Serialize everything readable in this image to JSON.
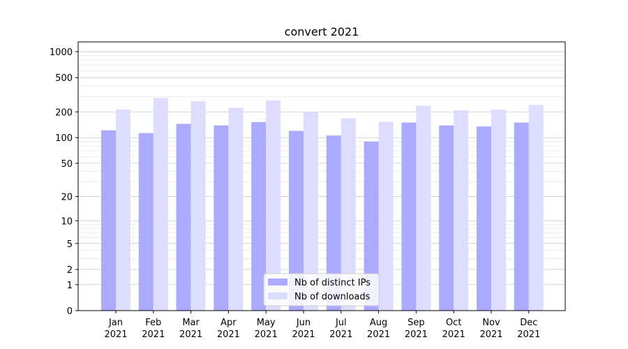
{
  "chart_data": {
    "type": "bar",
    "title": "convert 2021",
    "xlabel": "",
    "ylabel": "",
    "yscale": "symlog",
    "ylim": [
      0,
      1300
    ],
    "yticks": [
      0,
      1,
      2,
      5,
      10,
      20,
      50,
      100,
      200,
      500,
      1000
    ],
    "ytick_labels": [
      "0",
      "1",
      "2",
      "5",
      "10",
      "20",
      "50",
      "100",
      "200",
      "500",
      "1000"
    ],
    "categories": [
      "Jan\n2021",
      "Feb\n2021",
      "Mar\n2021",
      "Apr\n2021",
      "May\n2021",
      "Jun\n2021",
      "Jul\n2021",
      "Aug\n2021",
      "Sep\n2021",
      "Oct\n2021",
      "Nov\n2021",
      "Dec\n2021"
    ],
    "series": [
      {
        "name": "Nb of distinct IPs",
        "color": "#aaaaff",
        "values": [
          122,
          113,
          145,
          139,
          152,
          120,
          106,
          90,
          150,
          139,
          135,
          150
        ]
      },
      {
        "name": "Nb of downloads",
        "color": "#ddddff",
        "values": [
          213,
          291,
          267,
          223,
          272,
          200,
          168,
          153,
          236,
          209,
          212,
          241
        ]
      }
    ],
    "grid": true,
    "legend_position": "bottom-center"
  }
}
